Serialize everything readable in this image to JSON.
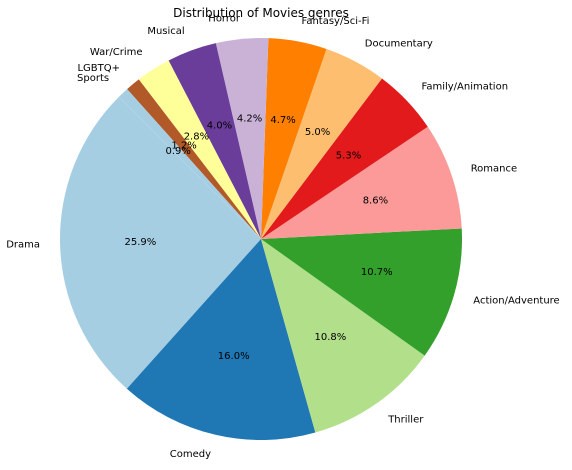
{
  "chart_data": {
    "type": "pie",
    "title": "Distribution of Movies genres",
    "start_angle": 135,
    "direction": "counterclockwise",
    "slices": [
      {
        "label": "Drama",
        "value": 25.9,
        "pct_text": "25.9%",
        "color": "#a6cee3"
      },
      {
        "label": "Comedy",
        "value": 16.0,
        "pct_text": "16.0%",
        "color": "#1f78b4"
      },
      {
        "label": "Thriller",
        "value": 10.8,
        "pct_text": "10.8%",
        "color": "#b2df8a"
      },
      {
        "label": "Action/Adventure",
        "value": 10.7,
        "pct_text": "10.7%",
        "color": "#33a02c"
      },
      {
        "label": "Romance",
        "value": 8.6,
        "pct_text": "8.6%",
        "color": "#fb9a99"
      },
      {
        "label": "Family/Animation",
        "value": 5.3,
        "pct_text": "5.3%",
        "color": "#e31a1c"
      },
      {
        "label": "Documentary",
        "value": 5.0,
        "pct_text": "5.0%",
        "color": "#fdbf6f"
      },
      {
        "label": "Fantasy/Sci-Fi",
        "value": 4.7,
        "pct_text": "4.7%",
        "color": "#ff7f00"
      },
      {
        "label": "Horror",
        "value": 4.2,
        "pct_text": "4.2%",
        "color": "#cab2d6"
      },
      {
        "label": "Musical",
        "value": 4.0,
        "pct_text": "4.0%",
        "color": "#6a3d9a"
      },
      {
        "label": "War/Crime",
        "value": 2.8,
        "pct_text": "2.8%",
        "color": "#ffff99"
      },
      {
        "label": "LGBTQ+",
        "value": 1.2,
        "pct_text": "1.2%",
        "color": "#b15928"
      },
      {
        "label": "Sports",
        "value": 0.9,
        "pct_text": "0.9%",
        "color": "#a6cee3"
      }
    ]
  }
}
